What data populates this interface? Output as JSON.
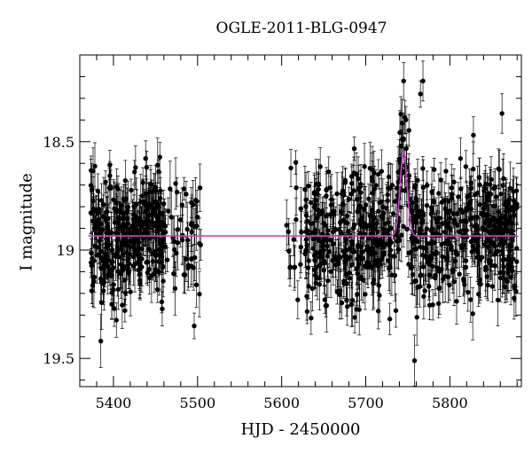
{
  "chart_data": {
    "type": "scatter",
    "title": "OGLE-2011-BLG-0947",
    "xlabel": "HJD - 2450000",
    "ylabel": "I magnitude",
    "xlim": [
      5360,
      5885
    ],
    "ylim": [
      19.63,
      18.1
    ],
    "y_inverted": true,
    "x_ticks": [
      5400,
      5500,
      5600,
      5700,
      5800
    ],
    "y_ticks": [
      18.5,
      19,
      19.5
    ],
    "y_tick_labels": [
      "18.5",
      "19",
      "19.5"
    ],
    "grid": false,
    "legend": "none",
    "colors": {
      "points": "#000000",
      "model": "#cc44cc",
      "axes": "#000000"
    },
    "series": [
      {
        "kind": "observations",
        "error_bars": true,
        "seasons": [
          {
            "x_range": [
              5370,
              5505
            ],
            "baseline": 18.94,
            "scatter": 0.17,
            "density": "dense near 5375-5460, sparse toward 5505"
          },
          {
            "x_range": [
              5597,
              5880
            ],
            "baseline": 18.94,
            "scatter": 0.17,
            "density": "dense 5630-5880"
          }
        ],
        "notable_points": [
          {
            "x": 5745,
            "y": 18.22
          },
          {
            "x": 5765,
            "y": 18.28
          },
          {
            "x": 5768,
            "y": 18.22
          },
          {
            "x": 5862,
            "y": 18.37
          },
          {
            "x": 5828,
            "y": 18.47
          },
          {
            "x": 5742,
            "y": 18.52
          },
          {
            "x": 5740,
            "y": 18.58
          },
          {
            "x": 5758,
            "y": 19.51
          },
          {
            "x": 5774,
            "y": 19.62
          },
          {
            "x": 5496,
            "y": 19.35
          },
          {
            "x": 5385,
            "y": 19.42
          }
        ]
      },
      {
        "kind": "model",
        "baseline": 18.935,
        "peak_x": 5745,
        "peak_y": 18.55,
        "width_days": 6
      }
    ]
  }
}
